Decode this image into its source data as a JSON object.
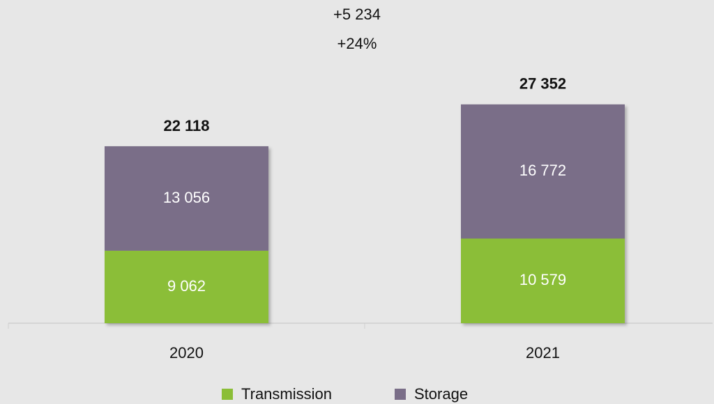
{
  "chart_data": {
    "type": "stacked_bar",
    "annotations": [
      "+5 234",
      "+24%"
    ],
    "categories": [
      "2020",
      "2021"
    ],
    "series": [
      {
        "name": "Transmission",
        "color": "#8bbe37",
        "values": [
          9062,
          10579
        ],
        "value_labels": [
          "9 062",
          "10 579"
        ]
      },
      {
        "name": "Storage",
        "color": "#7a6e88",
        "values": [
          13056,
          16772
        ],
        "value_labels": [
          "13 056",
          "16 772"
        ]
      }
    ],
    "totals": {
      "values": [
        22118,
        27352
      ],
      "value_labels": [
        "22 118",
        "27 352"
      ]
    },
    "ylim": [
      0,
      35000
    ],
    "grid": false,
    "legend": "bottom"
  }
}
